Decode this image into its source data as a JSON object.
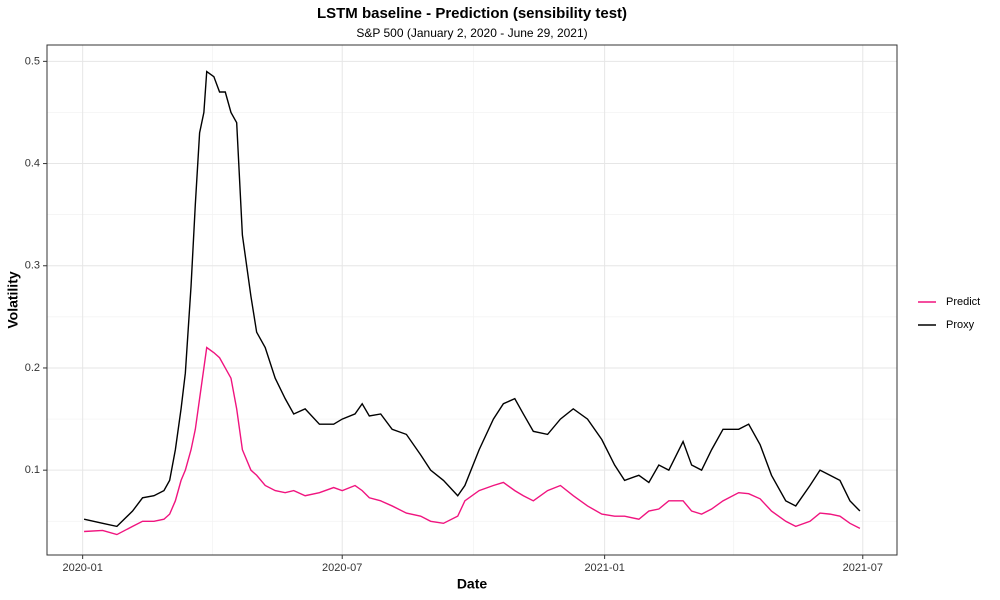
{
  "chart_data": {
    "type": "line",
    "title": "LSTM baseline - Prediction (sensibility test)",
    "subtitle": "S&P 500 (January 2, 2020 - June 29, 2021)",
    "x_label": "Date",
    "y_label": "Volatility",
    "x": [
      "2020-01-02",
      "2020-01-15",
      "2020-01-25",
      "2020-02-05",
      "2020-02-12",
      "2020-02-20",
      "2020-02-27",
      "2020-03-02",
      "2020-03-06",
      "2020-03-10",
      "2020-03-13",
      "2020-03-17",
      "2020-03-20",
      "2020-03-23",
      "2020-03-26",
      "2020-03-28",
      "2020-04-02",
      "2020-04-06",
      "2020-04-10",
      "2020-04-14",
      "2020-04-18",
      "2020-04-22",
      "2020-04-28",
      "2020-05-02",
      "2020-05-08",
      "2020-05-15",
      "2020-05-22",
      "2020-05-28",
      "2020-06-05",
      "2020-06-15",
      "2020-06-25",
      "2020-07-01",
      "2020-07-10",
      "2020-07-15",
      "2020-07-20",
      "2020-07-28",
      "2020-08-05",
      "2020-08-15",
      "2020-08-25",
      "2020-09-01",
      "2020-09-10",
      "2020-09-20",
      "2020-09-25",
      "2020-10-05",
      "2020-10-15",
      "2020-10-22",
      "2020-10-30",
      "2020-11-05",
      "2020-11-12",
      "2020-11-22",
      "2020-12-01",
      "2020-12-10",
      "2020-12-20",
      "2020-12-30",
      "2021-01-08",
      "2021-01-15",
      "2021-01-25",
      "2021-02-01",
      "2021-02-08",
      "2021-02-15",
      "2021-02-25",
      "2021-03-03",
      "2021-03-10",
      "2021-03-17",
      "2021-03-25",
      "2021-04-05",
      "2021-04-12",
      "2021-04-20",
      "2021-04-28",
      "2021-05-08",
      "2021-05-15",
      "2021-05-25",
      "2021-06-01",
      "2021-06-08",
      "2021-06-15",
      "2021-06-22",
      "2021-06-29"
    ],
    "series": [
      {
        "name": "Predict",
        "color": "#f0147f",
        "values": [
          0.04,
          0.041,
          0.037,
          0.045,
          0.05,
          0.05,
          0.052,
          0.057,
          0.07,
          0.09,
          0.1,
          0.12,
          0.14,
          0.17,
          0.2,
          0.22,
          0.215,
          0.21,
          0.2,
          0.19,
          0.16,
          0.12,
          0.1,
          0.095,
          0.085,
          0.08,
          0.078,
          0.08,
          0.075,
          0.078,
          0.083,
          0.08,
          0.085,
          0.08,
          0.073,
          0.07,
          0.065,
          0.058,
          0.055,
          0.05,
          0.048,
          0.055,
          0.07,
          0.08,
          0.085,
          0.088,
          0.08,
          0.075,
          0.07,
          0.08,
          0.085,
          0.075,
          0.065,
          0.057,
          0.055,
          0.055,
          0.052,
          0.06,
          0.062,
          0.07,
          0.07,
          0.06,
          0.057,
          0.062,
          0.07,
          0.078,
          0.077,
          0.072,
          0.06,
          0.05,
          0.045,
          0.05,
          0.058,
          0.057,
          0.055,
          0.048,
          0.043
        ]
      },
      {
        "name": "Proxy",
        "color": "#000000",
        "values": [
          0.052,
          0.048,
          0.045,
          0.06,
          0.073,
          0.075,
          0.08,
          0.09,
          0.12,
          0.16,
          0.195,
          0.28,
          0.36,
          0.43,
          0.45,
          0.49,
          0.485,
          0.47,
          0.47,
          0.45,
          0.44,
          0.33,
          0.27,
          0.235,
          0.22,
          0.19,
          0.17,
          0.155,
          0.16,
          0.145,
          0.145,
          0.15,
          0.155,
          0.165,
          0.153,
          0.155,
          0.14,
          0.135,
          0.115,
          0.1,
          0.09,
          0.075,
          0.085,
          0.12,
          0.15,
          0.165,
          0.17,
          0.155,
          0.138,
          0.135,
          0.15,
          0.16,
          0.15,
          0.13,
          0.105,
          0.09,
          0.095,
          0.088,
          0.105,
          0.1,
          0.128,
          0.105,
          0.1,
          0.12,
          0.14,
          0.14,
          0.145,
          0.125,
          0.095,
          0.07,
          0.065,
          0.085,
          0.1,
          0.095,
          0.09,
          0.07,
          0.06
        ]
      }
    ],
    "xlim": [
      "2019-12-07",
      "2021-07-25"
    ],
    "xticks": [
      {
        "value": "2020-01-01",
        "label": "2020-01"
      },
      {
        "value": "2020-07-01",
        "label": "2020-07"
      },
      {
        "value": "2021-01-01",
        "label": "2021-01"
      },
      {
        "value": "2021-07-01",
        "label": "2021-07"
      }
    ],
    "ylim": [
      0.017,
      0.516
    ],
    "yticks": [
      0.1,
      0.2,
      0.3,
      0.4,
      0.5
    ],
    "grid": true,
    "legend": "right"
  }
}
